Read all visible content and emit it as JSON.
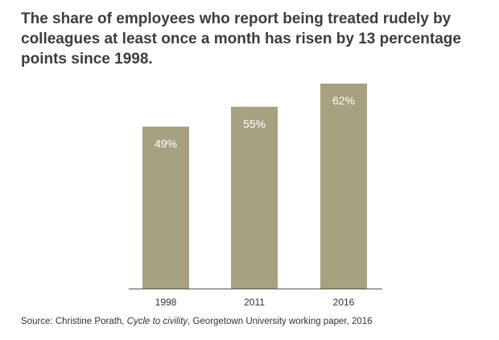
{
  "title": "The share of employees who report being treated rudely by colleagues at least once a month has risen by 13 percentage points since 1998.",
  "source": {
    "prefix": "Source: Christine Porath, ",
    "work": "Cycle to civility",
    "suffix": ", Georgetown University working paper, 2016"
  },
  "colors": {
    "bar": "#a7a180",
    "bar_label": "#ffffff",
    "axis": "#555555"
  },
  "chart_data": {
    "type": "bar",
    "categories": [
      "1998",
      "2011",
      "2016"
    ],
    "values": [
      49,
      55,
      62
    ],
    "data_labels": [
      "49%",
      "55%",
      "62%"
    ],
    "title": "The share of employees who report being treated rudely by colleagues at least once a month has risen by 13 percentage points since 1998.",
    "xlabel": "",
    "ylabel": "",
    "ylim": [
      0,
      62
    ],
    "grid": false,
    "legend": "none"
  }
}
